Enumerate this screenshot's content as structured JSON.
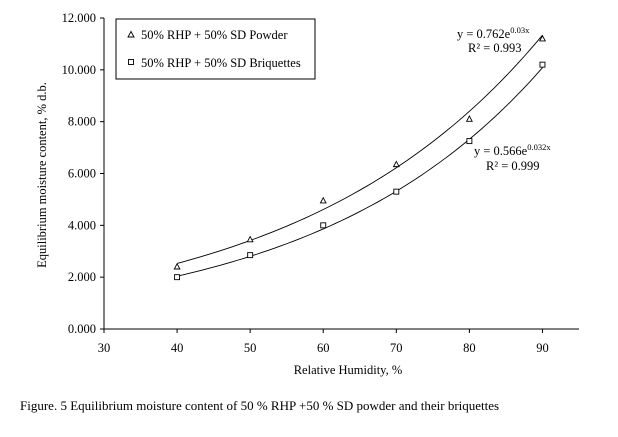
{
  "caption": "Figure. 5 Equilibrium moisture content of 50 % RHP +50 % SD powder and their briquettes",
  "chart_data": {
    "type": "scatter",
    "xlabel": "Relative Humidity, %",
    "ylabel": "Equilibrium moisture content, % d.b.",
    "xlim": [
      30,
      95
    ],
    "ylim": [
      0,
      12
    ],
    "x_ticks": [
      "30",
      "40",
      "50",
      "60",
      "70",
      "80",
      "90"
    ],
    "y_ticks": [
      "0.000",
      "2.000",
      "4.000",
      "6.000",
      "8.000",
      "10.000",
      "12.000"
    ],
    "grid": false,
    "legend_position": "top-left",
    "series": [
      {
        "name": "50% RHP + 50% SD Powder",
        "marker": "triangle",
        "x": [
          40,
          50,
          60,
          70,
          80,
          90
        ],
        "y": [
          2.4,
          3.45,
          4.95,
          6.35,
          8.1,
          11.2
        ],
        "trendline": {
          "a": 0.762,
          "b": 0.03
        },
        "equation": {
          "y_prefix": "y = 0.762e",
          "exponent": "0.03x",
          "r2": "R² = 0.993"
        }
      },
      {
        "name": "50% RHP + 50% SD Briquettes",
        "marker": "square",
        "x": [
          40,
          50,
          60,
          70,
          80,
          90
        ],
        "y": [
          2.0,
          2.85,
          4.0,
          5.3,
          7.25,
          10.2
        ],
        "trendline": {
          "a": 0.566,
          "b": 0.032
        },
        "equation": {
          "y_prefix": "y = 0.566e",
          "exponent": "0.032x",
          "r2": "R² = 0.999"
        }
      }
    ]
  }
}
